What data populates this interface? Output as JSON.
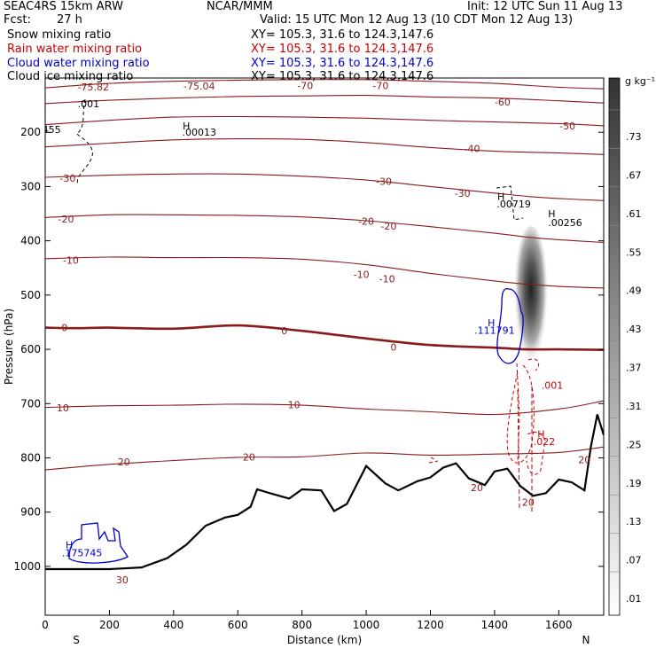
{
  "header": {
    "model": "SEAC4RS 15km ARW",
    "org": "NCAR/MMM",
    "init": "Init: 12 UTC Sun 11 Aug 13",
    "fcst_label": "Fcst:",
    "fcst_value": "27 h",
    "valid": "Valid: 15 UTC Mon 12 Aug 13 (10 CDT Mon 12 Aug 13)"
  },
  "fields": [
    {
      "name": "Snow mixing ratio",
      "color": "#000000",
      "xy": "XY= 105.3, 31.6 to 124.3,147.6"
    },
    {
      "name": "Rain water mixing ratio",
      "color": "#cc0000",
      "xy": "XY= 105.3, 31.6 to 124.3,147.6"
    },
    {
      "name": "Cloud water mixing ratio",
      "color": "#0000cc",
      "xy": "XY= 105.3, 31.6 to 124.3,147.6"
    },
    {
      "name": "Cloud ice mixing ratio",
      "color": "#000000",
      "xy": "XY= 105.3, 31.6 to 124.3,147.6"
    }
  ],
  "chart_data": {
    "type": "cross-section",
    "xlabel": "Distance (km)",
    "ylabel": "Pressure (hPa)",
    "xlim": [
      0,
      1740
    ],
    "ylim": [
      1090,
      100
    ],
    "x_ticks": [
      0,
      200,
      400,
      600,
      800,
      1000,
      1200,
      1400,
      1600
    ],
    "y_ticks": [
      200,
      300,
      400,
      500,
      600,
      700,
      800,
      900,
      1000
    ],
    "x_end_labels": {
      "left": "S",
      "right": "N"
    },
    "temperature_contours": [
      {
        "level": -70,
        "pts": [
          [
            0,
            118
          ],
          [
            200,
            110
          ],
          [
            400,
            106
          ],
          [
            600,
            104
          ],
          [
            800,
            103
          ],
          [
            1000,
            103
          ],
          [
            1200,
            106
          ],
          [
            1400,
            110
          ],
          [
            1600,
            117
          ],
          [
            1740,
            120
          ]
        ]
      },
      {
        "level": -60,
        "pts": [
          [
            0,
            147
          ],
          [
            200,
            141
          ],
          [
            400,
            137
          ],
          [
            600,
            134
          ],
          [
            800,
            133
          ],
          [
            1000,
            132
          ],
          [
            1200,
            135
          ],
          [
            1400,
            137
          ],
          [
            1600,
            142
          ],
          [
            1740,
            146
          ]
        ]
      },
      {
        "level": -50,
        "pts": [
          [
            0,
            186
          ],
          [
            200,
            178
          ],
          [
            400,
            172
          ],
          [
            600,
            171
          ],
          [
            800,
            172
          ],
          [
            1000,
            174
          ],
          [
            1200,
            178
          ],
          [
            1400,
            181
          ],
          [
            1600,
            184
          ],
          [
            1740,
            188
          ]
        ]
      },
      {
        "level": -40,
        "pts": [
          [
            0,
            227
          ],
          [
            200,
            220
          ],
          [
            400,
            214
          ],
          [
            600,
            212
          ],
          [
            800,
            213
          ],
          [
            1000,
            219
          ],
          [
            1200,
            228
          ],
          [
            1400,
            235
          ],
          [
            1600,
            238
          ],
          [
            1740,
            241
          ]
        ]
      },
      {
        "level": -30,
        "pts": [
          [
            0,
            283
          ],
          [
            200,
            279
          ],
          [
            400,
            277
          ],
          [
            600,
            277
          ],
          [
            800,
            281
          ],
          [
            1000,
            288
          ],
          [
            1200,
            300
          ],
          [
            1400,
            312
          ],
          [
            1500,
            318
          ],
          [
            1600,
            322
          ],
          [
            1740,
            326
          ]
        ]
      },
      {
        "level": -20,
        "pts": [
          [
            0,
            357
          ],
          [
            200,
            352
          ],
          [
            400,
            352
          ],
          [
            600,
            353
          ],
          [
            800,
            356
          ],
          [
            1000,
            363
          ],
          [
            1200,
            374
          ],
          [
            1400,
            386
          ],
          [
            1500,
            393
          ],
          [
            1600,
            398
          ],
          [
            1740,
            403
          ]
        ]
      },
      {
        "level": -10,
        "pts": [
          [
            0,
            433
          ],
          [
            200,
            430
          ],
          [
            400,
            431
          ],
          [
            600,
            431
          ],
          [
            800,
            434
          ],
          [
            1000,
            444
          ],
          [
            1200,
            460
          ],
          [
            1400,
            474
          ],
          [
            1500,
            480
          ],
          [
            1600,
            484
          ],
          [
            1740,
            487
          ]
        ]
      },
      {
        "level": 0,
        "bold": true,
        "pts": [
          [
            0,
            560
          ],
          [
            100,
            561
          ],
          [
            200,
            560
          ],
          [
            400,
            562
          ],
          [
            600,
            556
          ],
          [
            800,
            566
          ],
          [
            1000,
            580
          ],
          [
            1200,
            592
          ],
          [
            1400,
            597
          ],
          [
            1500,
            600
          ],
          [
            1600,
            600
          ],
          [
            1740,
            601
          ]
        ]
      },
      {
        "level": 10,
        "pts": [
          [
            0,
            707
          ],
          [
            200,
            704
          ],
          [
            400,
            703
          ],
          [
            600,
            701
          ],
          [
            800,
            703
          ],
          [
            1000,
            710
          ],
          [
            1200,
            715
          ],
          [
            1400,
            720
          ],
          [
            1600,
            710
          ],
          [
            1740,
            695
          ]
        ]
      },
      {
        "level": 20,
        "pts": [
          [
            0,
            822
          ],
          [
            200,
            812
          ],
          [
            400,
            805
          ],
          [
            600,
            799
          ],
          [
            800,
            798
          ],
          [
            1000,
            791
          ],
          [
            1200,
            795
          ],
          [
            1400,
            793
          ],
          [
            1600,
            790
          ],
          [
            1740,
            780
          ]
        ]
      }
    ],
    "terrain_pressure": [
      [
        0,
        1005
      ],
      [
        100,
        1005
      ],
      [
        200,
        1005
      ],
      [
        300,
        1002
      ],
      [
        380,
        985
      ],
      [
        440,
        960
      ],
      [
        500,
        925
      ],
      [
        560,
        910
      ],
      [
        600,
        905
      ],
      [
        640,
        890
      ],
      [
        660,
        858
      ],
      [
        700,
        865
      ],
      [
        760,
        875
      ],
      [
        800,
        858
      ],
      [
        860,
        860
      ],
      [
        900,
        898
      ],
      [
        940,
        885
      ],
      [
        1000,
        815
      ],
      [
        1060,
        847
      ],
      [
        1100,
        860
      ],
      [
        1160,
        843
      ],
      [
        1200,
        836
      ],
      [
        1240,
        818
      ],
      [
        1280,
        810
      ],
      [
        1320,
        838
      ],
      [
        1370,
        850
      ],
      [
        1400,
        825
      ],
      [
        1440,
        820
      ],
      [
        1480,
        852
      ],
      [
        1520,
        870
      ],
      [
        1560,
        865
      ],
      [
        1600,
        840
      ],
      [
        1640,
        845
      ],
      [
        1680,
        860
      ],
      [
        1700,
        780
      ],
      [
        1720,
        720
      ],
      [
        1740,
        758
      ]
    ],
    "labels": [
      {
        "text": "-75.82",
        "x": 150,
        "y": 116,
        "color": "#8b1a1a"
      },
      {
        "text": "-75.04",
        "x": 480,
        "y": 115,
        "color": "#8b1a1a"
      },
      {
        "text": "-70",
        "x": 810,
        "y": 114,
        "color": "#8b1a1a"
      },
      {
        "text": "-70",
        "x": 1045,
        "y": 114,
        "color": "#8b1a1a"
      },
      {
        "text": "-60",
        "x": 1425,
        "y": 144,
        "color": "#8b1a1a"
      },
      {
        "text": "-50",
        "x": 1627,
        "y": 188,
        "color": "#8b1a1a"
      },
      {
        "text": "-40",
        "x": 1330,
        "y": 230,
        "color": "#8b1a1a"
      },
      {
        "text": "-30",
        "x": 70,
        "y": 285,
        "color": "#8b1a1a"
      },
      {
        "text": "-30",
        "x": 1055,
        "y": 290,
        "color": "#8b1a1a"
      },
      {
        "text": "-30",
        "x": 1300,
        "y": 312,
        "color": "#8b1a1a"
      },
      {
        "text": "-20",
        "x": 65,
        "y": 360,
        "color": "#8b1a1a"
      },
      {
        "text": "-20",
        "x": 1000,
        "y": 364,
        "color": "#8b1a1a"
      },
      {
        "text": "-20",
        "x": 1070,
        "y": 373,
        "color": "#8b1a1a"
      },
      {
        "text": "-10",
        "x": 80,
        "y": 436,
        "color": "#8b1a1a"
      },
      {
        "text": "-10",
        "x": 985,
        "y": 462,
        "color": "#8b1a1a"
      },
      {
        "text": "-10",
        "x": 1065,
        "y": 470,
        "color": "#8b1a1a"
      },
      {
        "text": "0",
        "x": 60,
        "y": 560,
        "color": "#8b1a1a"
      },
      {
        "text": "0",
        "x": 745,
        "y": 566,
        "color": "#8b1a1a"
      },
      {
        "text": "0",
        "x": 1085,
        "y": 596,
        "color": "#8b1a1a"
      },
      {
        "text": "10",
        "x": 55,
        "y": 708,
        "color": "#8b1a1a"
      },
      {
        "text": "10",
        "x": 775,
        "y": 702,
        "color": "#8b1a1a"
      },
      {
        "text": "20",
        "x": 245,
        "y": 807,
        "color": "#8b1a1a"
      },
      {
        "text": "20",
        "x": 635,
        "y": 798,
        "color": "#8b1a1a"
      },
      {
        "text": "20",
        "x": 1345,
        "y": 855,
        "color": "#8b1a1a"
      },
      {
        "text": "20",
        "x": 1505,
        "y": 882,
        "color": "#8b1a1a"
      },
      {
        "text": "20",
        "x": 1680,
        "y": 803,
        "color": "#8b1a1a"
      },
      {
        "text": "30",
        "x": 240,
        "y": 1025,
        "color": "#8b1a1a"
      },
      {
        "text": ".001",
        "x": 135,
        "y": 147,
        "color": "#000000"
      },
      {
        "text": ".455",
        "x": 15,
        "y": 195,
        "color": "#000000"
      },
      {
        "text": "H",
        "x": 440,
        "y": 188,
        "color": "#000000"
      },
      {
        "text": ".00013",
        "x": 480,
        "y": 200,
        "color": "#000000"
      },
      {
        "text": "H",
        "x": 1420,
        "y": 318,
        "color": "#000000"
      },
      {
        "text": ".00719",
        "x": 1460,
        "y": 332,
        "color": "#000000"
      },
      {
        "text": "H",
        "x": 1578,
        "y": 350,
        "color": "#000000"
      },
      {
        "text": ".00256",
        "x": 1620,
        "y": 366,
        "color": "#000000"
      },
      {
        "text": "H",
        "x": 1390,
        "y": 551,
        "color": "#0000cc"
      },
      {
        "text": ".111791",
        "x": 1400,
        "y": 565,
        "color": "#0000cc"
      },
      {
        "text": ".001",
        "x": 1580,
        "y": 666,
        "color": "#cc0000"
      },
      {
        "text": "H",
        "x": 1545,
        "y": 756,
        "color": "#cc0000"
      },
      {
        "text": ".022",
        "x": 1555,
        "y": 770,
        "color": "#cc0000"
      },
      {
        "text": "H",
        "x": 75,
        "y": 960,
        "color": "#0000cc"
      },
      {
        "text": ".175745",
        "x": 115,
        "y": 975,
        "color": "#0000cc"
      }
    ],
    "colorbar": {
      "unit": "g kg⁻¹",
      "labels": [
        ".73",
        ".67",
        ".61",
        ".55",
        ".49",
        ".43",
        ".37",
        ".31",
        ".25",
        ".19",
        ".13",
        ".07",
        ".01"
      ]
    }
  }
}
